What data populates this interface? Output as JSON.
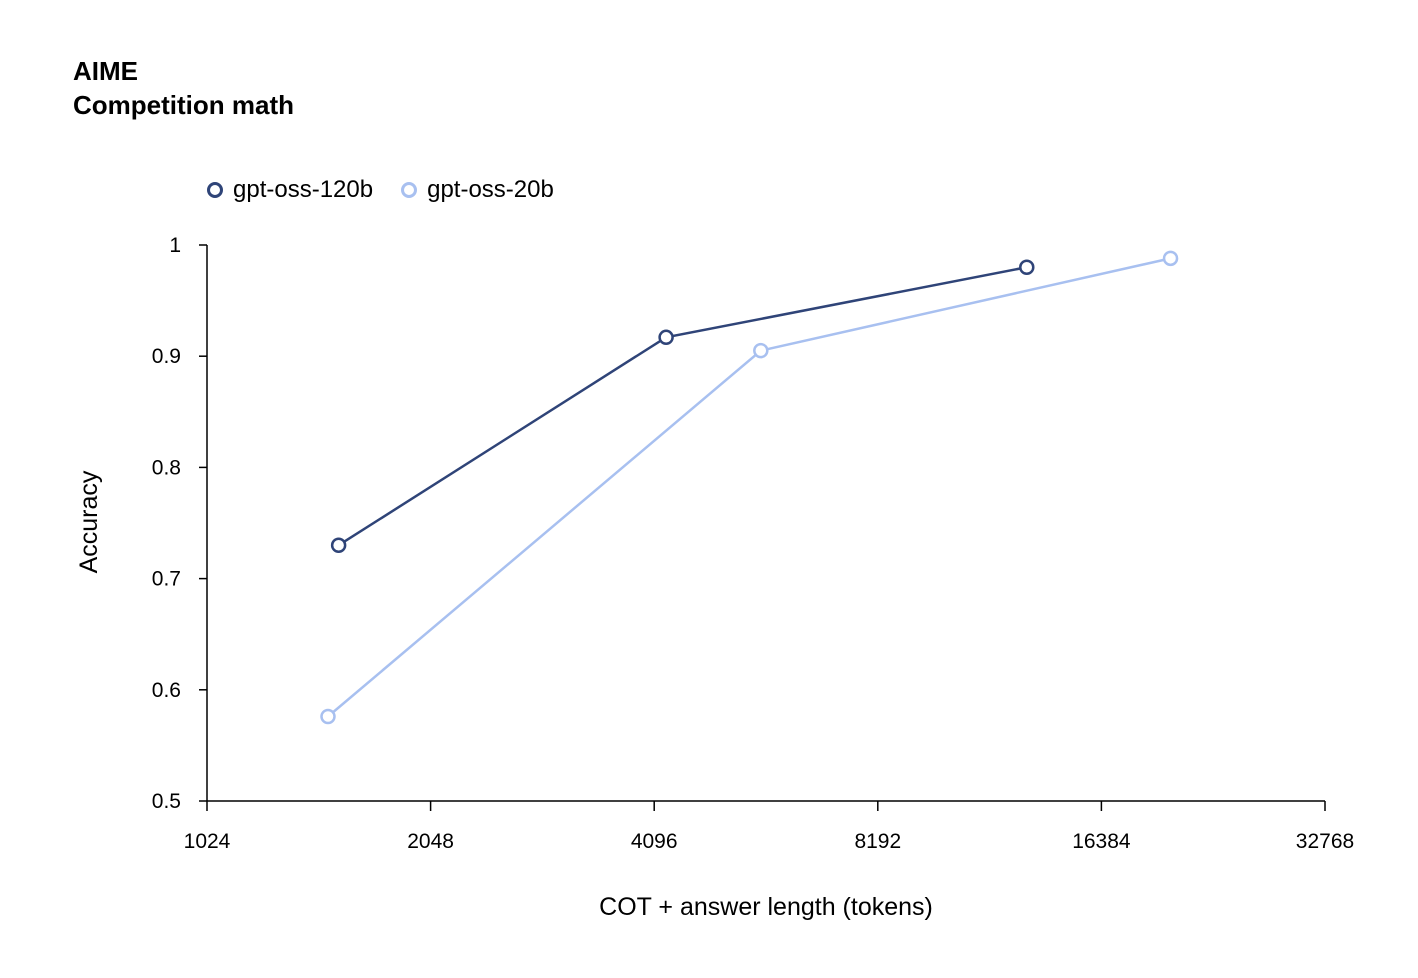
{
  "title": "AIME",
  "subtitle": "Competition math",
  "colors": {
    "series1": "#2f4478",
    "series2": "#a8c0f0",
    "axis": "#000000"
  },
  "chart_data": {
    "type": "line",
    "title": "AIME",
    "subtitle": "Competition math",
    "xlabel": "COT + answer length (tokens)",
    "ylabel": "Accuracy",
    "x_scale": "log2",
    "xlim": [
      1024,
      32768
    ],
    "ylim": [
      0.5,
      1
    ],
    "x_ticks": [
      1024,
      2048,
      4096,
      8192,
      16384,
      32768
    ],
    "x_tick_labels": [
      "1024",
      "2048",
      "4096",
      "8192",
      "16384",
      "32768"
    ],
    "y_ticks": [
      0.5,
      0.6,
      0.7,
      0.8,
      0.9,
      1
    ],
    "y_tick_labels": [
      "0.5",
      "0.6",
      "0.7",
      "0.8",
      "0.9",
      "1"
    ],
    "grid": false,
    "legend_position": "top-left",
    "series": [
      {
        "name": "gpt-oss-120b",
        "color": "#2f4478",
        "x": [
          1540,
          4250,
          13000
        ],
        "y": [
          0.73,
          0.917,
          0.98
        ]
      },
      {
        "name": "gpt-oss-20b",
        "color": "#a8c0f0",
        "x": [
          1490,
          5700,
          20300
        ],
        "y": [
          0.576,
          0.905,
          0.988
        ]
      }
    ]
  }
}
